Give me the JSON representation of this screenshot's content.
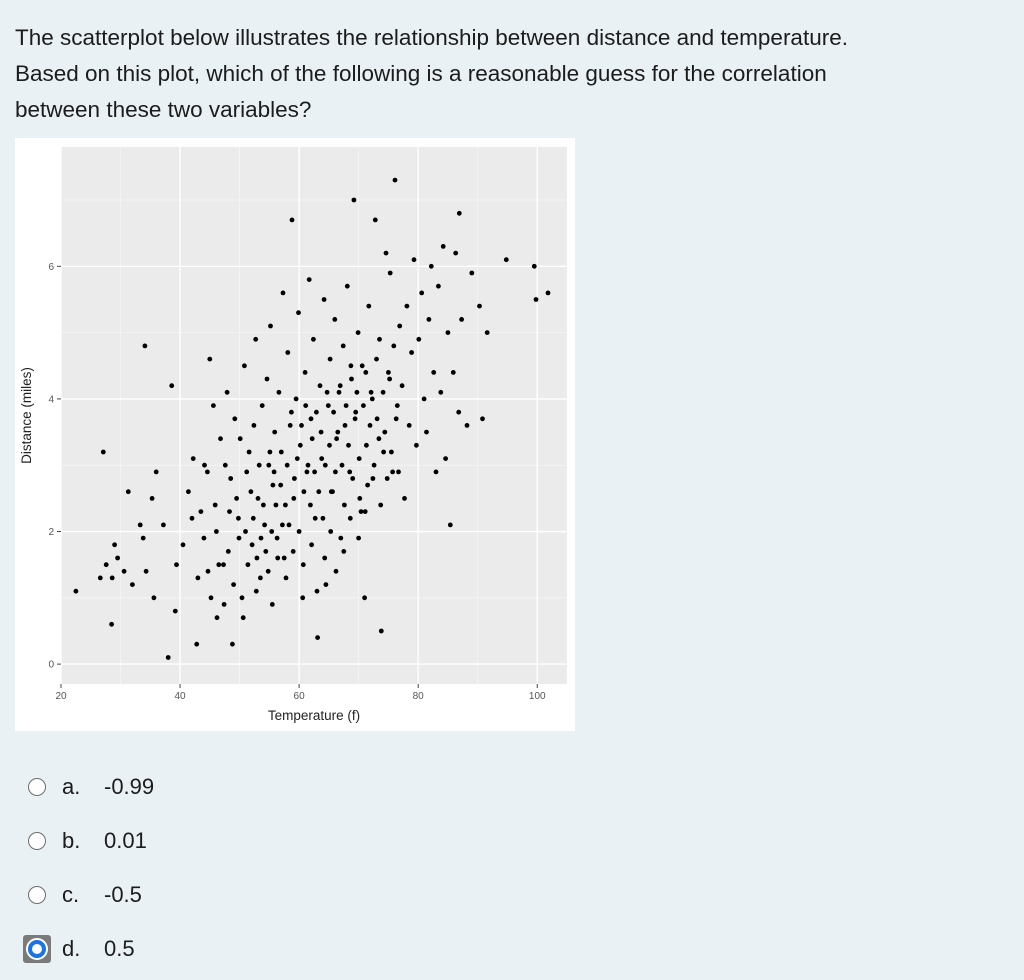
{
  "question": {
    "lines": [
      "The scatterplot below illustrates the relationship between distance and temperature.",
      "Based on this plot, which of the following is a reasonable guess for the correlation",
      "between these two variables?"
    ]
  },
  "chart_data": {
    "type": "scatter",
    "title": "",
    "xlabel": "Temperature (f)",
    "ylabel": "Distance (miles)",
    "xlim": [
      20,
      105
    ],
    "ylim": [
      -0.3,
      7.8
    ],
    "x_ticks": [
      "20",
      "40",
      "60",
      "80",
      "100"
    ],
    "y_ticks": [
      "0",
      "2",
      "4",
      "6"
    ],
    "grid": true,
    "background": "#ebebeb",
    "point_color": "#000000",
    "points": [
      [
        22.5,
        1.1
      ],
      [
        26.6,
        1.3
      ],
      [
        27.6,
        1.5
      ],
      [
        28.6,
        1.3
      ],
      [
        29.5,
        1.6
      ],
      [
        28.5,
        0.6
      ],
      [
        27.1,
        3.2
      ],
      [
        29.0,
        1.8
      ],
      [
        30.6,
        1.4
      ],
      [
        31.3,
        2.6
      ],
      [
        32.0,
        1.2
      ],
      [
        33.3,
        2.1
      ],
      [
        33.8,
        1.9
      ],
      [
        34.1,
        4.8
      ],
      [
        34.3,
        1.4
      ],
      [
        35.3,
        2.5
      ],
      [
        35.6,
        1.0
      ],
      [
        36.0,
        2.9
      ],
      [
        37.2,
        2.1
      ],
      [
        38.0,
        0.1
      ],
      [
        38.6,
        4.2
      ],
      [
        39.2,
        0.8
      ],
      [
        39.4,
        1.5
      ],
      [
        40.5,
        1.8
      ],
      [
        41.4,
        2.6
      ],
      [
        42.2,
        3.1
      ],
      [
        42.8,
        0.3
      ],
      [
        43.5,
        2.3
      ],
      [
        44.1,
        3.0
      ],
      [
        44.7,
        1.4
      ],
      [
        45.0,
        4.6
      ],
      [
        45.6,
        3.9
      ],
      [
        45.9,
        2.4
      ],
      [
        46.2,
        0.7
      ],
      [
        46.8,
        3.4
      ],
      [
        47.3,
        1.5
      ],
      [
        47.9,
        4.1
      ],
      [
        48.5,
        2.8
      ],
      [
        48.8,
        0.3
      ],
      [
        49.2,
        3.7
      ],
      [
        49.8,
        2.2
      ],
      [
        50.4,
        1.0
      ],
      [
        50.8,
        4.5
      ],
      [
        51.2,
        2.9
      ],
      [
        51.6,
        3.2
      ],
      [
        52.1,
        1.8
      ],
      [
        52.4,
        3.6
      ],
      [
        52.7,
        4.9
      ],
      [
        53.1,
        2.5
      ],
      [
        53.5,
        1.3
      ],
      [
        53.8,
        3.9
      ],
      [
        54.2,
        2.1
      ],
      [
        54.6,
        4.3
      ],
      [
        54.9,
        3.0
      ],
      [
        55.2,
        5.1
      ],
      [
        55.6,
        2.7
      ],
      [
        55.9,
        3.5
      ],
      [
        56.3,
        1.9
      ],
      [
        56.6,
        4.1
      ],
      [
        57.0,
        3.2
      ],
      [
        57.3,
        5.6
      ],
      [
        57.7,
        2.4
      ],
      [
        58.1,
        4.7
      ],
      [
        58.5,
        3.6
      ],
      [
        58.8,
        6.7
      ],
      [
        59.2,
        2.8
      ],
      [
        59.5,
        4.0
      ],
      [
        59.9,
        5.3
      ],
      [
        60.2,
        3.3
      ],
      [
        60.6,
        1.0
      ],
      [
        61.0,
        4.4
      ],
      [
        61.3,
        2.9
      ],
      [
        61.7,
        5.8
      ],
      [
        62.0,
        3.7
      ],
      [
        62.4,
        4.9
      ],
      [
        62.7,
        2.2
      ],
      [
        63.1,
        0.4
      ],
      [
        63.5,
        4.2
      ],
      [
        63.8,
        3.1
      ],
      [
        64.2,
        5.5
      ],
      [
        64.5,
        1.2
      ],
      [
        64.9,
        3.9
      ],
      [
        65.2,
        4.6
      ],
      [
        65.6,
        2.6
      ],
      [
        66.0,
        5.2
      ],
      [
        66.3,
        3.4
      ],
      [
        66.7,
        4.1
      ],
      [
        67.0,
        1.9
      ],
      [
        67.4,
        4.8
      ],
      [
        67.7,
        3.6
      ],
      [
        68.1,
        5.7
      ],
      [
        68.5,
        2.9
      ],
      [
        68.8,
        4.3
      ],
      [
        69.2,
        7.0
      ],
      [
        69.5,
        3.8
      ],
      [
        69.9,
        5.0
      ],
      [
        70.2,
        2.5
      ],
      [
        70.6,
        4.5
      ],
      [
        71.0,
        1.0
      ],
      [
        71.3,
        3.3
      ],
      [
        71.7,
        5.4
      ],
      [
        72.1,
        4.1
      ],
      [
        72.4,
        2.8
      ],
      [
        72.8,
        6.7
      ],
      [
        73.1,
        3.7
      ],
      [
        73.5,
        4.9
      ],
      [
        73.8,
        0.5
      ],
      [
        74.2,
        3.2
      ],
      [
        74.6,
        6.2
      ],
      [
        75.0,
        4.4
      ],
      [
        75.3,
        5.9
      ],
      [
        75.7,
        2.9
      ],
      [
        76.1,
        7.3
      ],
      [
        76.5,
        3.9
      ],
      [
        76.9,
        5.1
      ],
      [
        77.3,
        4.2
      ],
      [
        77.7,
        2.5
      ],
      [
        78.1,
        5.4
      ],
      [
        78.5,
        3.6
      ],
      [
        78.9,
        4.7
      ],
      [
        79.3,
        6.1
      ],
      [
        79.7,
        3.3
      ],
      [
        80.1,
        4.9
      ],
      [
        80.6,
        5.6
      ],
      [
        81.0,
        4.0
      ],
      [
        81.4,
        3.5
      ],
      [
        81.8,
        5.2
      ],
      [
        82.2,
        6.0
      ],
      [
        82.6,
        4.4
      ],
      [
        83.0,
        2.9
      ],
      [
        83.4,
        5.7
      ],
      [
        83.8,
        4.1
      ],
      [
        84.2,
        6.3
      ],
      [
        84.6,
        3.1
      ],
      [
        85.0,
        5.0
      ],
      [
        85.4,
        2.1
      ],
      [
        85.9,
        4.4
      ],
      [
        86.3,
        6.2
      ],
      [
        86.8,
        3.8
      ],
      [
        87.3,
        5.2
      ],
      [
        88.2,
        3.6
      ],
      [
        89.0,
        5.9
      ],
      [
        90.3,
        5.4
      ],
      [
        90.8,
        3.7
      ],
      [
        91.6,
        5.0
      ],
      [
        94.8,
        6.1
      ],
      [
        99.5,
        6.0
      ],
      [
        99.8,
        5.5
      ],
      [
        101.8,
        5.6
      ],
      [
        86.9,
        6.8
      ],
      [
        44.6,
        2.9
      ],
      [
        46.1,
        2.0
      ],
      [
        47.6,
        3.0
      ],
      [
        48.1,
        1.7
      ],
      [
        49.5,
        2.5
      ],
      [
        50.1,
        3.4
      ],
      [
        51.0,
        2.0
      ],
      [
        51.9,
        2.6
      ],
      [
        52.9,
        1.6
      ],
      [
        53.3,
        3.0
      ],
      [
        54.0,
        2.4
      ],
      [
        54.4,
        1.7
      ],
      [
        55.1,
        3.2
      ],
      [
        55.4,
        2.0
      ],
      [
        55.8,
        2.9
      ],
      [
        56.1,
        2.4
      ],
      [
        56.9,
        2.7
      ],
      [
        57.5,
        1.6
      ],
      [
        58.0,
        3.0
      ],
      [
        58.3,
        2.1
      ],
      [
        58.7,
        3.8
      ],
      [
        59.1,
        2.5
      ],
      [
        59.7,
        3.1
      ],
      [
        60.0,
        2.0
      ],
      [
        60.4,
        3.6
      ],
      [
        60.8,
        2.6
      ],
      [
        61.1,
        3.9
      ],
      [
        61.5,
        3.0
      ],
      [
        61.9,
        2.4
      ],
      [
        62.2,
        3.4
      ],
      [
        62.6,
        2.9
      ],
      [
        62.9,
        3.8
      ],
      [
        63.3,
        2.6
      ],
      [
        63.7,
        3.5
      ],
      [
        64.0,
        2.2
      ],
      [
        64.4,
        3.0
      ],
      [
        64.7,
        4.1
      ],
      [
        65.1,
        3.3
      ],
      [
        65.4,
        2.6
      ],
      [
        65.8,
        3.8
      ],
      [
        66.1,
        2.9
      ],
      [
        66.5,
        3.5
      ],
      [
        66.9,
        4.2
      ],
      [
        67.2,
        3.0
      ],
      [
        67.6,
        2.4
      ],
      [
        67.9,
        3.9
      ],
      [
        68.3,
        3.3
      ],
      [
        68.7,
        4.5
      ],
      [
        69.0,
        2.8
      ],
      [
        69.4,
        3.7
      ],
      [
        69.7,
        4.1
      ],
      [
        70.1,
        3.1
      ],
      [
        70.4,
        2.3
      ],
      [
        70.8,
        3.9
      ],
      [
        71.2,
        4.4
      ],
      [
        71.5,
        2.7
      ],
      [
        71.9,
        3.6
      ],
      [
        72.3,
        4.0
      ],
      [
        72.6,
        3.0
      ],
      [
        73.0,
        4.6
      ],
      [
        73.4,
        3.4
      ],
      [
        73.7,
        2.4
      ],
      [
        74.1,
        4.1
      ],
      [
        74.4,
        3.5
      ],
      [
        74.8,
        2.8
      ],
      [
        75.2,
        4.3
      ],
      [
        75.5,
        3.2
      ],
      [
        75.9,
        4.8
      ],
      [
        76.3,
        3.7
      ],
      [
        76.7,
        2.9
      ],
      [
        42.0,
        2.2
      ],
      [
        43.0,
        1.3
      ],
      [
        44.0,
        1.9
      ],
      [
        45.2,
        1.0
      ],
      [
        46.5,
        1.5
      ],
      [
        47.4,
        0.9
      ],
      [
        48.3,
        2.3
      ],
      [
        49.0,
        1.2
      ],
      [
        49.9,
        1.9
      ],
      [
        50.6,
        0.7
      ],
      [
        51.4,
        1.5
      ],
      [
        52.3,
        2.2
      ],
      [
        52.8,
        1.1
      ],
      [
        53.6,
        1.9
      ],
      [
        54.8,
        1.4
      ],
      [
        55.5,
        0.9
      ],
      [
        56.4,
        1.6
      ],
      [
        57.2,
        2.1
      ],
      [
        57.8,
        1.3
      ],
      [
        59.0,
        1.7
      ],
      [
        60.7,
        1.5
      ],
      [
        62.1,
        1.8
      ],
      [
        63.0,
        1.1
      ],
      [
        64.3,
        1.6
      ],
      [
        65.3,
        2.0
      ],
      [
        66.2,
        1.4
      ],
      [
        67.5,
        1.7
      ],
      [
        68.6,
        2.2
      ],
      [
        70.0,
        1.9
      ],
      [
        71.1,
        2.3
      ]
    ]
  },
  "answers": {
    "options": [
      {
        "letter": "a.",
        "value": "-0.99",
        "selected": false
      },
      {
        "letter": "b.",
        "value": "0.01",
        "selected": false
      },
      {
        "letter": "c.",
        "value": "-0.5",
        "selected": false
      },
      {
        "letter": "d.",
        "value": "0.5",
        "selected": true
      }
    ]
  },
  "colors": {
    "page_bg": "#e9f1f5",
    "radio_selected": "#1b73e8"
  }
}
